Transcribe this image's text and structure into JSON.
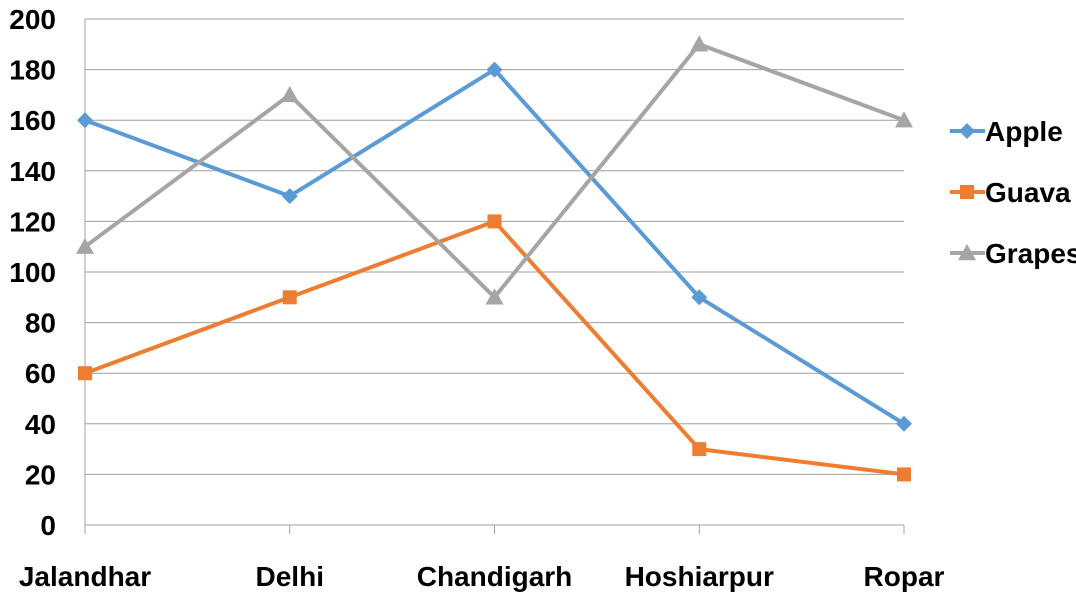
{
  "chart_data": {
    "type": "line",
    "title": "",
    "xlabel": "",
    "ylabel": "",
    "categories": [
      "Jalandhar",
      "Delhi",
      "Chandigarh",
      "Hoshiarpur",
      "Ropar"
    ],
    "ylim": [
      0,
      200
    ],
    "yticks": [
      "0",
      "20",
      "40",
      "60",
      "80",
      "100",
      "120",
      "140",
      "160",
      "180",
      "200"
    ],
    "grid": true,
    "legend_position": "right",
    "series": [
      {
        "name": "Apple",
        "values": [
          160,
          130,
          180,
          90,
          40
        ],
        "color": "#5b9bd5",
        "marker": "diamond"
      },
      {
        "name": "Guava",
        "values": [
          60,
          90,
          120,
          30,
          20
        ],
        "color": "#ed7d31",
        "marker": "square"
      },
      {
        "name": "Grapes",
        "values": [
          110,
          170,
          90,
          190,
          160
        ],
        "color": "#a5a5a5",
        "marker": "triangle"
      }
    ]
  }
}
